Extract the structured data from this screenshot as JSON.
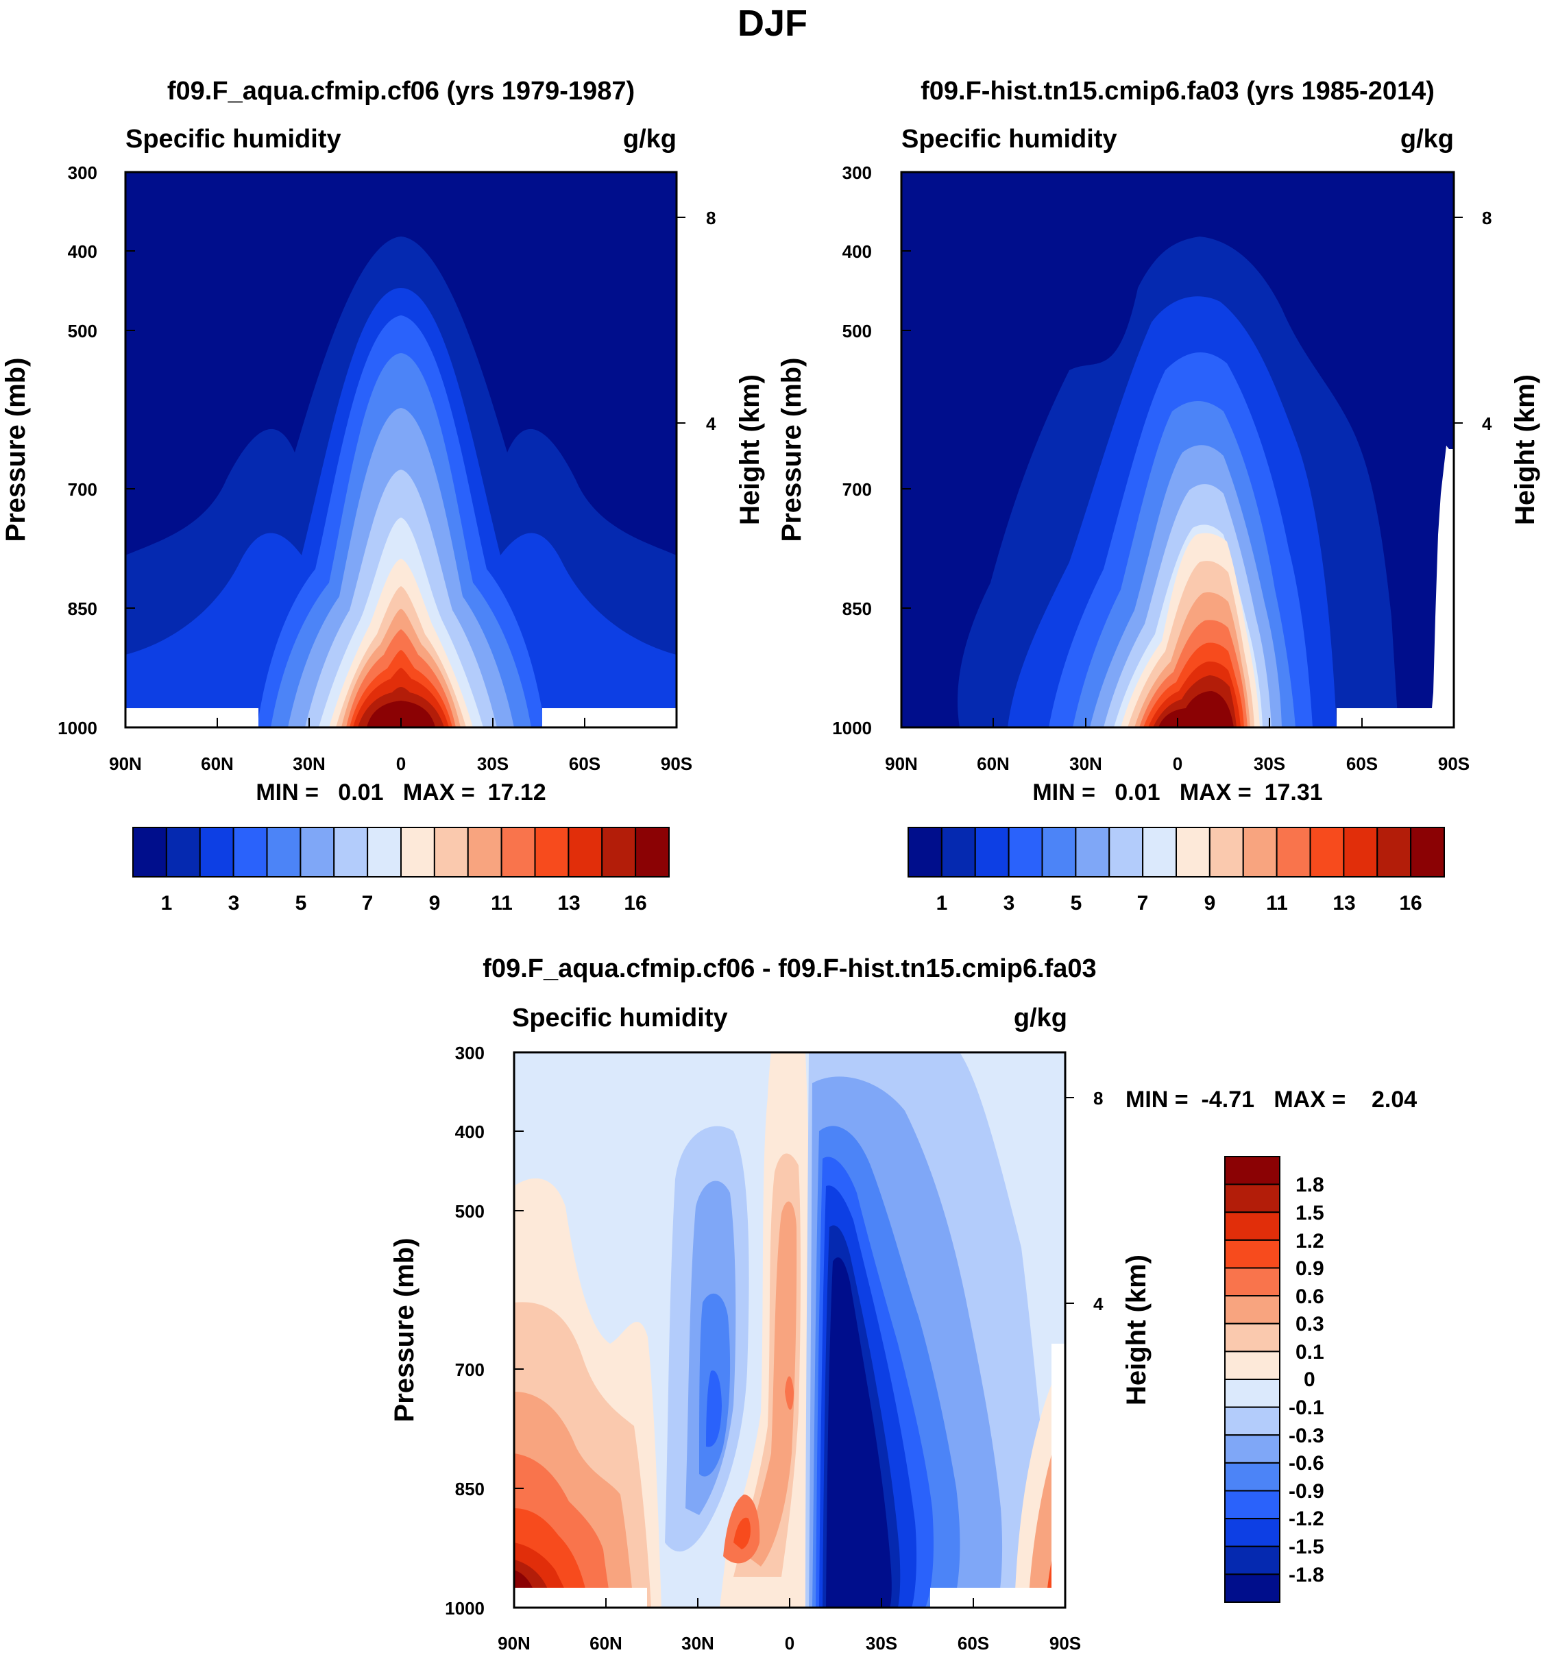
{
  "page_title": "DJF",
  "colors": {
    "cbar_main": [
      "#000e8c",
      "#0529b0",
      "#0d3fe4",
      "#2a62fb",
      "#4c84f7",
      "#7fa7f7",
      "#b3ccfb",
      "#dbe9fc",
      "#fde9d9",
      "#fac9ae",
      "#f8a47f",
      "#f9744c",
      "#f74b1d",
      "#e12e0a",
      "#b31d09",
      "#8b0204"
    ],
    "cbar_diff": [
      "#8b0204",
      "#b31d09",
      "#e12e0a",
      "#f74b1d",
      "#f9744c",
      "#f8a47f",
      "#fac9ae",
      "#fde9d9",
      "#dbe9fc",
      "#b3ccfb",
      "#7fa7f7",
      "#4c84f7",
      "#2a62fb",
      "#0d3fe4",
      "#0529b0",
      "#000e8c"
    ]
  },
  "chart_data": [
    {
      "type": "heatmap",
      "title": "f09.F_aqua.cfmip.cf06 (yrs 1979-1987)",
      "left_label": "Specific humidity",
      "right_label": "g/kg",
      "xlabel": "",
      "ylabel": "Pressure (mb)",
      "ylabel_right": "Height (km)",
      "x_ticks": [
        "90N",
        "60N",
        "30N",
        "0",
        "30S",
        "60S",
        "90S"
      ],
      "x_tick_values": [
        90,
        60,
        30,
        0,
        -30,
        -60,
        -90
      ],
      "y_ticks": [
        "300",
        "400",
        "500",
        "700",
        "850",
        "1000"
      ],
      "y_tick_values": [
        300,
        400,
        500,
        700,
        850,
        1000
      ],
      "y_right_ticks": [
        "8",
        "4"
      ],
      "ylim": [
        1000,
        300
      ],
      "xlim": [
        90,
        -90
      ],
      "min": "0.01",
      "max": "17.12",
      "stats_text": "MIN =   0.01   MAX =  17.12",
      "colorbar_labels": [
        "1",
        "3",
        "5",
        "7",
        "9",
        "11",
        "13",
        "16"
      ],
      "field_description": "zonal-mean specific humidity peaking ~17 g/kg near the equator at the surface"
    },
    {
      "type": "heatmap",
      "title": "f09.F-hist.tn15.cmip6.fa03 (yrs 1985-2014)",
      "left_label": "Specific humidity",
      "right_label": "g/kg",
      "ylabel": "Pressure (mb)",
      "ylabel_right": "Height (km)",
      "x_ticks": [
        "90N",
        "60N",
        "30N",
        "0",
        "30S",
        "60S",
        "90S"
      ],
      "y_ticks": [
        "300",
        "400",
        "500",
        "700",
        "850",
        "1000"
      ],
      "y_right_ticks": [
        "8",
        "4"
      ],
      "min": "0.01",
      "max": "17.31",
      "stats_text": "MIN =   0.01   MAX =  17.31",
      "colorbar_labels": [
        "1",
        "3",
        "5",
        "7",
        "9",
        "11",
        "13",
        "16"
      ]
    },
    {
      "type": "heatmap",
      "title": "f09.F_aqua.cfmip.cf06 - f09.F-hist.tn15.cmip6.fa03",
      "left_label": "Specific humidity",
      "right_label": "g/kg",
      "ylabel": "Pressure (mb)",
      "ylabel_right": "Height (km)",
      "x_ticks": [
        "90N",
        "60N",
        "30N",
        "0",
        "30S",
        "60S",
        "90S"
      ],
      "y_ticks": [
        "300",
        "400",
        "500",
        "700",
        "850",
        "1000"
      ],
      "y_right_ticks": [
        "8",
        "4"
      ],
      "min": "-4.71",
      "max": "2.04",
      "stats_text": "MIN =  -4.71   MAX =    2.04",
      "colorbar_labels": [
        "1.8",
        "1.5",
        "1.2",
        "0.9",
        "0.6",
        "0.3",
        "0.1",
        "0",
        "-0.1",
        "-0.3",
        "-0.6",
        "-0.9",
        "-1.2",
        "-1.5",
        "-1.8"
      ]
    }
  ]
}
